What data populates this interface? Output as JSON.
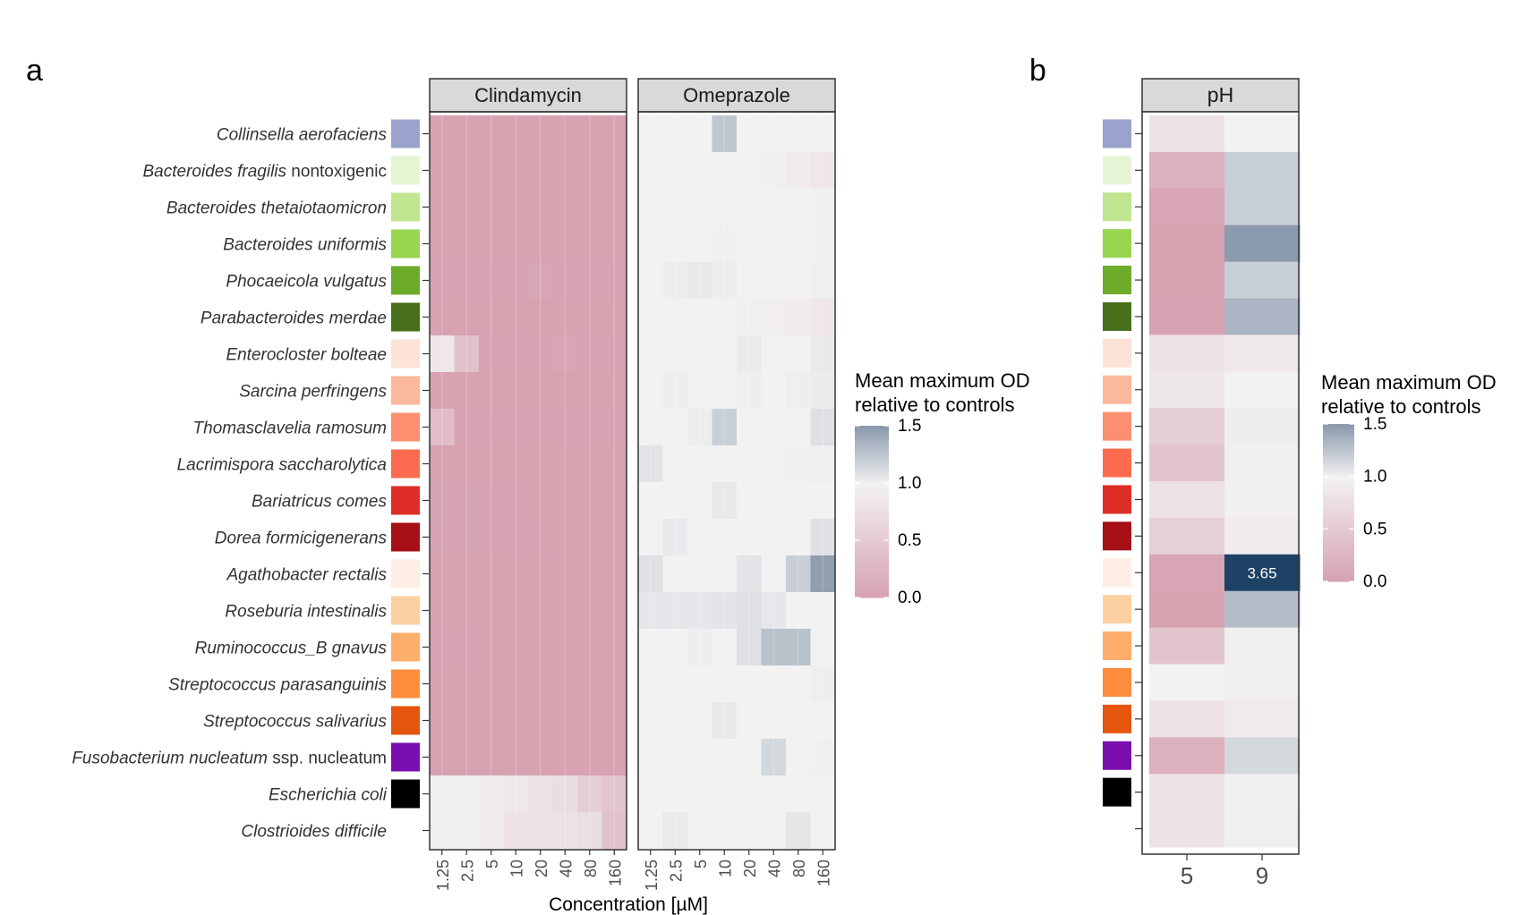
{
  "panels": {
    "a": {
      "letter": "a"
    },
    "b": {
      "letter": "b"
    }
  },
  "colors": {
    "low": "#d6a1b0",
    "mid": "#f2f2f2",
    "high": "#8c9aad",
    "extreme": "#1e4265",
    "facet_strip": "#d9d9d9",
    "frame": "#333333"
  },
  "chart_data": [
    {
      "type": "heatmap",
      "facets": [
        "Clindamycin",
        "Omeprazole"
      ],
      "xlabel": "Concentration  [µM]",
      "x": [
        "1.25",
        "2.5",
        "5",
        "10",
        "20",
        "40",
        "80",
        "160"
      ],
      "y": [
        {
          "pre": "Collinsella aerofaciens",
          "post": "",
          "swatch": "#9aa3cb"
        },
        {
          "pre": "Bacteroides fragilis",
          "post": " nontoxigenic",
          "swatch": "#e5f5d3"
        },
        {
          "pre": "Bacteroides thetaiotaomicron",
          "post": "",
          "swatch": "#c0e58f"
        },
        {
          "pre": "Bacteroides uniformis",
          "post": "",
          "swatch": "#98d650"
        },
        {
          "pre": "Phocaeicola vulgatus",
          "post": "",
          "swatch": "#6dab2a"
        },
        {
          "pre": "Parabacteroides merdae",
          "post": "",
          "swatch": "#476f1c"
        },
        {
          "pre": "Enterocloster bolteae",
          "post": "",
          "swatch": "#fde2d8"
        },
        {
          "pre": "Sarcina perfringens",
          "post": "",
          "swatch": "#fbb89c"
        },
        {
          "pre": "Thomasclavelia ramosum",
          "post": "",
          "swatch": "#fb8f6f"
        },
        {
          "pre": "Lacrimispora saccharolytica",
          "post": "",
          "swatch": "#fb6b50"
        },
        {
          "pre": "Bariatricus comes",
          "post": "",
          "swatch": "#de2d26"
        },
        {
          "pre": "Dorea formicigenerans",
          "post": "",
          "swatch": "#a50f15"
        },
        {
          "pre": "Agathobacter rectalis",
          "post": "",
          "swatch": "#feeee3"
        },
        {
          "pre": "Roseburia intestinalis",
          "post": "",
          "swatch": "#fdd0a2"
        },
        {
          "pre": "Ruminococcus_B gnavus",
          "post": "",
          "swatch": "#fdae6b"
        },
        {
          "pre": "Streptococcus parasanguinis",
          "post": "",
          "swatch": "#fd8d3c"
        },
        {
          "pre": "Streptococcus salivarius",
          "post": "",
          "swatch": "#e6550d"
        },
        {
          "pre": "Fusobacterium nucleatum",
          "post": " ssp. nucleatum",
          "swatch": "#7a0fb0"
        },
        {
          "pre": "Escherichia coli",
          "post": "",
          "swatch": "#000000"
        },
        {
          "pre": "Clostrioides difficile",
          "post": "",
          "swatch": null
        }
      ],
      "values": {
        "Clindamycin": [
          [
            0.02,
            0.02,
            0.02,
            0.02,
            0.02,
            0.02,
            0.02,
            0.02
          ],
          [
            0.02,
            0.02,
            0.02,
            0.02,
            0.02,
            0.02,
            0.02,
            0.02
          ],
          [
            0.02,
            0.02,
            0.02,
            0.02,
            0.02,
            0.02,
            0.02,
            0.02
          ],
          [
            0.02,
            0.02,
            0.02,
            0.02,
            0.02,
            0.02,
            0.02,
            0.02
          ],
          [
            0.03,
            0.03,
            0.03,
            0.03,
            0.05,
            0.03,
            0.03,
            0.03
          ],
          [
            0.02,
            0.02,
            0.02,
            0.02,
            0.02,
            0.02,
            0.02,
            0.02
          ],
          [
            0.85,
            0.4,
            0.03,
            0.03,
            0.03,
            0.05,
            0.03,
            0.03
          ],
          [
            0.02,
            0.02,
            0.02,
            0.02,
            0.02,
            0.02,
            0.02,
            0.02
          ],
          [
            0.35,
            0.03,
            0.03,
            0.03,
            0.03,
            0.03,
            0.03,
            0.03
          ],
          [
            0.02,
            0.02,
            0.02,
            0.02,
            0.02,
            0.02,
            0.02,
            0.02
          ],
          [
            0.04,
            0.04,
            0.04,
            0.04,
            0.02,
            0.02,
            0.02,
            0.02
          ],
          [
            0.04,
            0.04,
            0.04,
            0.03,
            0.03,
            0.02,
            0.02,
            0.02
          ],
          [
            0.02,
            0.02,
            0.02,
            0.02,
            0.02,
            0.02,
            0.02,
            0.02
          ],
          [
            0.02,
            0.02,
            0.02,
            0.02,
            0.02,
            0.02,
            0.02,
            0.02
          ],
          [
            0.03,
            0.03,
            0.02,
            0.02,
            0.02,
            0.02,
            0.02,
            0.02
          ],
          [
            0.02,
            0.02,
            0.02,
            0.02,
            0.02,
            0.02,
            0.02,
            0.02
          ],
          [
            0.02,
            0.02,
            0.02,
            0.02,
            0.02,
            0.02,
            0.02,
            0.02
          ],
          [
            0.02,
            0.02,
            0.02,
            0.02,
            0.02,
            0.02,
            0.02,
            0.02
          ],
          [
            0.95,
            0.95,
            0.92,
            0.88,
            0.8,
            0.75,
            0.55,
            0.45
          ],
          [
            0.95,
            0.95,
            0.92,
            0.82,
            0.8,
            0.8,
            0.75,
            0.4
          ]
        ],
        "Omeprazole": [
          [
            1.0,
            1.0,
            1.0,
            1.25,
            1.0,
            1.0,
            1.0,
            1.0
          ],
          [
            1.0,
            1.0,
            1.0,
            1.0,
            1.0,
            0.98,
            0.9,
            0.85
          ],
          [
            1.0,
            1.0,
            1.0,
            1.0,
            1.0,
            1.0,
            1.0,
            0.98
          ],
          [
            1.0,
            1.0,
            1.0,
            0.98,
            1.0,
            1.0,
            1.0,
            0.97
          ],
          [
            1.0,
            1.03,
            1.05,
            1.03,
            1.0,
            1.0,
            1.0,
            0.95
          ],
          [
            1.0,
            1.0,
            1.0,
            1.0,
            0.98,
            0.95,
            0.92,
            0.85
          ],
          [
            1.0,
            1.0,
            1.0,
            1.0,
            1.04,
            1.0,
            1.0,
            1.05
          ],
          [
            1.0,
            1.02,
            1.0,
            1.0,
            1.02,
            1.0,
            1.02,
            1.04
          ],
          [
            1.0,
            1.0,
            1.03,
            1.2,
            1.0,
            1.0,
            1.0,
            1.1
          ],
          [
            1.08,
            1.0,
            1.0,
            1.0,
            1.0,
            1.0,
            0.98,
            0.95
          ],
          [
            1.0,
            1.0,
            1.0,
            1.05,
            1.0,
            1.0,
            1.0,
            1.0
          ],
          [
            1.0,
            1.05,
            1.0,
            1.0,
            1.0,
            1.0,
            1.0,
            1.1
          ],
          [
            1.1,
            1.0,
            1.0,
            1.0,
            1.08,
            1.0,
            1.2,
            1.48
          ],
          [
            1.06,
            1.06,
            1.06,
            1.08,
            1.1,
            1.06,
            1.0,
            1.0
          ],
          [
            1.0,
            1.0,
            1.02,
            1.0,
            1.1,
            1.28,
            1.28,
            1.0
          ],
          [
            1.0,
            1.0,
            1.0,
            1.0,
            1.0,
            1.0,
            1.0,
            1.02
          ],
          [
            1.0,
            1.0,
            1.0,
            1.05,
            1.0,
            1.0,
            1.0,
            1.0
          ],
          [
            1.0,
            1.0,
            1.0,
            1.0,
            1.0,
            1.15,
            1.0,
            0.98
          ],
          [
            1.0,
            1.0,
            1.0,
            1.0,
            1.0,
            1.0,
            1.0,
            1.0
          ],
          [
            1.0,
            1.04,
            1.0,
            1.0,
            1.0,
            1.0,
            1.07,
            1.0
          ]
        ]
      },
      "legend": {
        "title_line1": "Mean maximum OD",
        "title_line2": "relative to controls",
        "ticks": [
          "1.5",
          "1.0",
          "0.5",
          "0.0"
        ],
        "placement": "right"
      },
      "scale": [
        0,
        1.5
      ]
    },
    {
      "type": "heatmap",
      "facets": [
        "pH"
      ],
      "x": [
        "5",
        "9"
      ],
      "values": [
        [
          0.82,
          1.0
        ],
        [
          0.2,
          1.2
        ],
        [
          0.05,
          1.2
        ],
        [
          0.02,
          1.5
        ],
        [
          0.02,
          1.2
        ],
        [
          0.03,
          1.35
        ],
        [
          0.83,
          0.88
        ],
        [
          0.86,
          1.0
        ],
        [
          0.55,
          1.02
        ],
        [
          0.45,
          0.96
        ],
        [
          0.8,
          0.96
        ],
        [
          0.58,
          0.92
        ],
        [
          0.05,
          3.65
        ],
        [
          0.02,
          1.3
        ],
        [
          0.45,
          0.96
        ],
        [
          1.0,
          0.96
        ],
        [
          0.8,
          0.9
        ],
        [
          0.2,
          1.15
        ],
        [
          0.82,
          0.96
        ],
        [
          0.82,
          0.95
        ]
      ],
      "annotations": [
        {
          "row": 12,
          "col": 1,
          "text": "3.65"
        }
      ],
      "legend": {
        "title_line1": "Mean maximum OD",
        "title_line2": "relative to controls",
        "ticks": [
          "1.5",
          "1.0",
          "0.5",
          "0.0"
        ],
        "placement": "right"
      },
      "scale": [
        0,
        1.5
      ]
    }
  ]
}
